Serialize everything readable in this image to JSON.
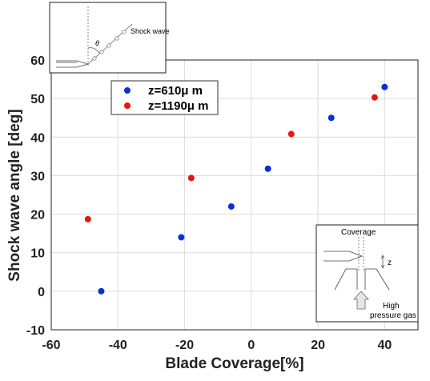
{
  "chart_data": {
    "type": "scatter",
    "xlabel": "Blade Coverage[%]",
    "ylabel": "Shock wave angle [deg]",
    "xlim": [
      -60,
      50
    ],
    "ylim": [
      -10,
      60
    ],
    "xticks": [
      "-60",
      "-40",
      "-20",
      "0",
      "20",
      "40"
    ],
    "yticks": [
      "-10",
      "0",
      "10",
      "20",
      "30",
      "40",
      "50",
      "60"
    ],
    "grid": true,
    "legend_position": "upper-left",
    "series": [
      {
        "name": "z=610μ m",
        "color": "#0a2fd6",
        "points": [
          [
            -45,
            0
          ],
          [
            -21,
            14
          ],
          [
            -6,
            22
          ],
          [
            5,
            31.8
          ],
          [
            24,
            45
          ],
          [
            40,
            53
          ]
        ]
      },
      {
        "name": "z=1190μ m",
        "color": "#e8160c",
        "points": [
          [
            -49,
            18.7
          ],
          [
            -18,
            29.4
          ],
          [
            12,
            40.8
          ],
          [
            37,
            50.3
          ]
        ]
      }
    ]
  },
  "insets": {
    "shock": {
      "label": "Shock wave",
      "angle_symbol": "θ"
    },
    "coverage": {
      "title": "Coverage",
      "z_label": "z",
      "gas_line1": "High",
      "gas_line2": "pressure gas"
    }
  }
}
